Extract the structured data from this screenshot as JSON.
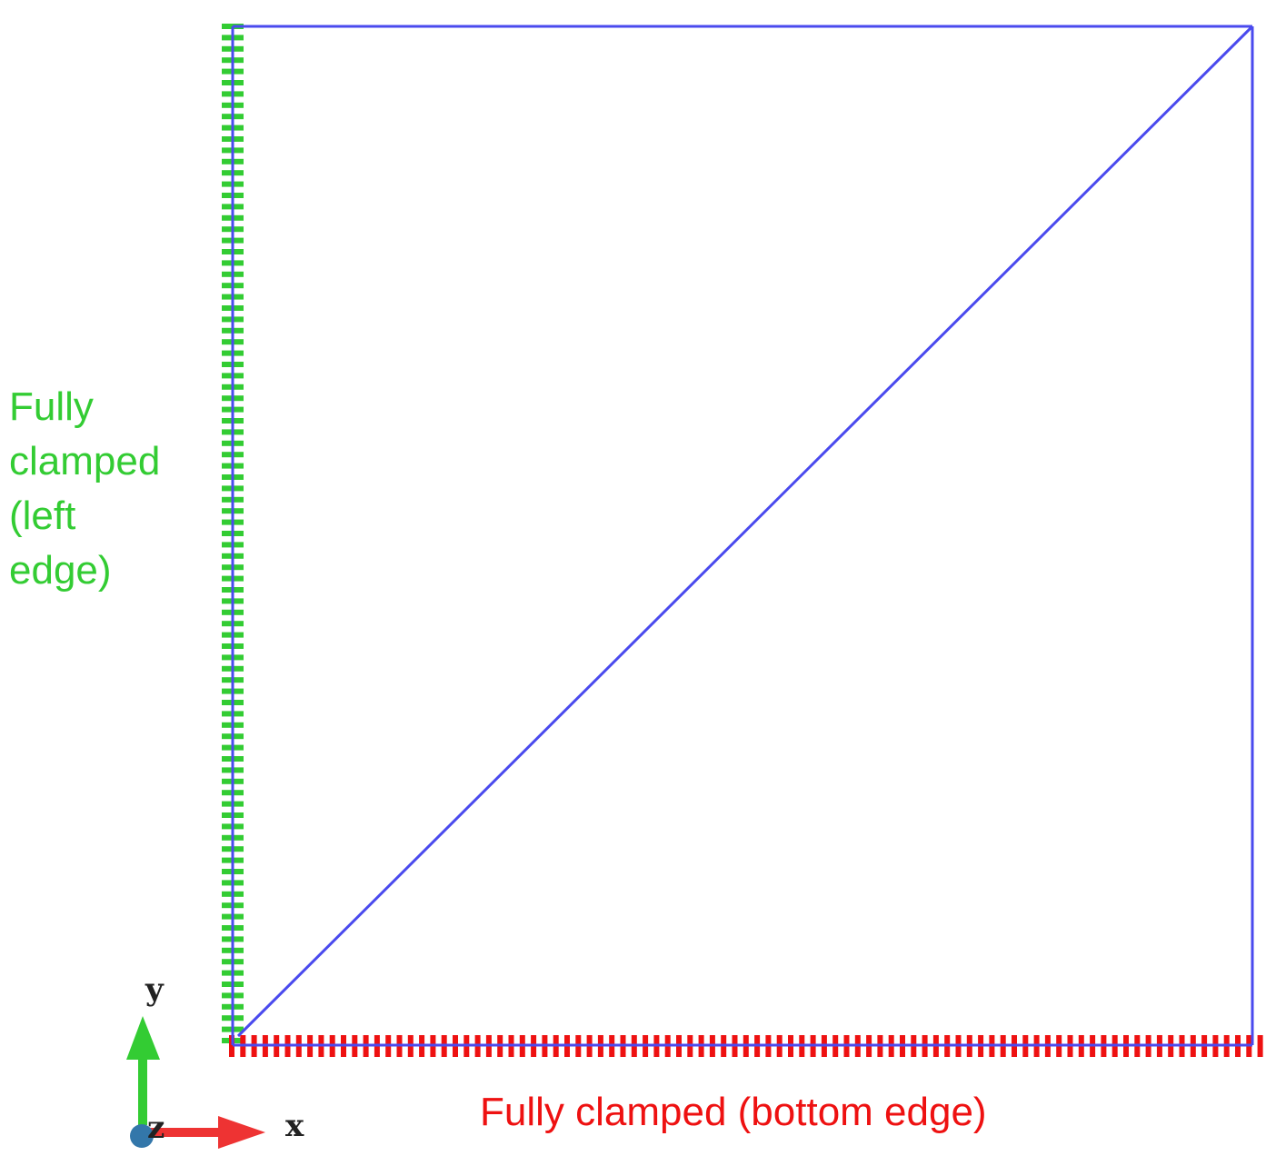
{
  "labels": {
    "left_edge_lines": [
      "Fully",
      "clamped",
      "(left",
      "edge)"
    ],
    "bottom_edge": "Fully clamped (bottom edge)"
  },
  "triad": {
    "x_label": "x",
    "y_label": "y",
    "z_label": "z"
  },
  "colors": {
    "mesh_edge": "#4a4aee",
    "left_bc": "#33cc33",
    "bottom_bc": "#ee1111",
    "x_axis": "#ee3333",
    "y_axis": "#33cc33",
    "z_axis": "#3377aa"
  },
  "icons": {
    "triad": "xyz-axis-triad-icon",
    "left_hatch": "green-clamp-hatch",
    "bottom_hatch": "red-clamp-hatch"
  }
}
